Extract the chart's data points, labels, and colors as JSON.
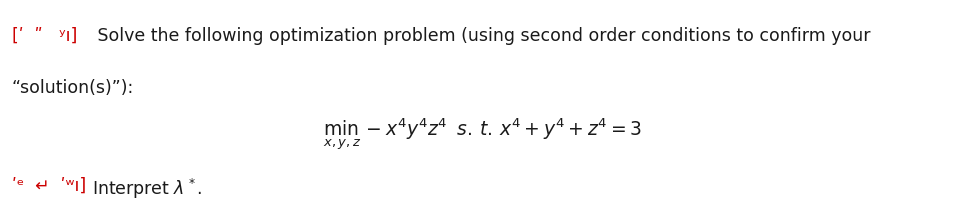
{
  "bg_color": "#ffffff",
  "text_color": "#1a1a1a",
  "red_color": "#cc0000",
  "font_size_main": 12.5,
  "font_size_math": 13.5,
  "font_size_bottom": 12.5,
  "line1_red": "[ʹ  ʺ   ʸı]",
  "line1_black": " Solve the following optimization problem (using second order conditions to confirm your",
  "line2": "“solution(s)”):",
  "math_formula": "$\\mathbf{\\min}_{x,y,z}\\,-x^4y^4z^4\\;\\; s.\\,t.\\, x^4+y^4+z^4=3$",
  "line3_red": "ʹᵉ  ↵  ʹʷı]",
  "line3_black": " Interpret $\\lambda^*$."
}
